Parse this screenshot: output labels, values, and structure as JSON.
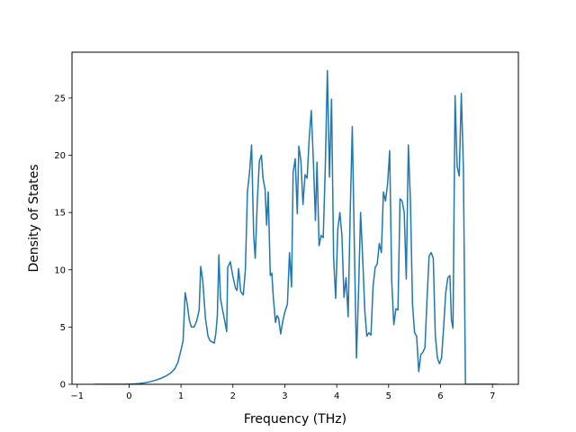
{
  "chart_data": {
    "type": "line",
    "title": "",
    "xlabel": "Frequency (THz)",
    "ylabel": "Density of States",
    "xlim": [
      -1.1,
      7.5
    ],
    "ylim": [
      0,
      29
    ],
    "x_ticks": [
      -1,
      0,
      1,
      2,
      3,
      4,
      5,
      6,
      7
    ],
    "y_ticks": [
      0,
      5,
      10,
      15,
      20,
      25
    ],
    "grid": false,
    "legend": "none",
    "line_color": "#1f77b4",
    "series": [
      {
        "points": [
          [
            -0.67,
            0.0
          ],
          [
            -0.5,
            0.0
          ],
          [
            -0.3,
            0.0
          ],
          [
            -0.1,
            0.0
          ],
          [
            0.0,
            0.01
          ],
          [
            0.1,
            0.03
          ],
          [
            0.2,
            0.07
          ],
          [
            0.3,
            0.13
          ],
          [
            0.4,
            0.22
          ],
          [
            0.5,
            0.34
          ],
          [
            0.6,
            0.5
          ],
          [
            0.7,
            0.7
          ],
          [
            0.8,
            0.98
          ],
          [
            0.88,
            1.35
          ],
          [
            0.94,
            1.9
          ],
          [
            1.0,
            3.0
          ],
          [
            1.04,
            3.8
          ],
          [
            1.08,
            8.0
          ],
          [
            1.12,
            7.0
          ],
          [
            1.16,
            5.6
          ],
          [
            1.2,
            5.0
          ],
          [
            1.25,
            5.0
          ],
          [
            1.3,
            5.5
          ],
          [
            1.35,
            6.5
          ],
          [
            1.38,
            10.3
          ],
          [
            1.42,
            9.0
          ],
          [
            1.47,
            5.8
          ],
          [
            1.52,
            4.2
          ],
          [
            1.56,
            3.8
          ],
          [
            1.6,
            3.7
          ],
          [
            1.64,
            3.6
          ],
          [
            1.67,
            4.4
          ],
          [
            1.7,
            6.0
          ],
          [
            1.73,
            11.3
          ],
          [
            1.76,
            7.5
          ],
          [
            1.8,
            6.5
          ],
          [
            1.84,
            5.6
          ],
          [
            1.88,
            4.6
          ],
          [
            1.9,
            10.2
          ],
          [
            1.95,
            10.7
          ],
          [
            2.0,
            9.4
          ],
          [
            2.05,
            8.4
          ],
          [
            2.08,
            8.2
          ],
          [
            2.11,
            10.1
          ],
          [
            2.15,
            8.1
          ],
          [
            2.2,
            7.8
          ],
          [
            2.24,
            10.0
          ],
          [
            2.28,
            16.8
          ],
          [
            2.32,
            18.5
          ],
          [
            2.36,
            20.9
          ],
          [
            2.4,
            13.0
          ],
          [
            2.43,
            11.0
          ],
          [
            2.47,
            16.0
          ],
          [
            2.51,
            19.5
          ],
          [
            2.55,
            20.0
          ],
          [
            2.58,
            18.0
          ],
          [
            2.62,
            17.0
          ],
          [
            2.65,
            13.9
          ],
          [
            2.68,
            16.8
          ],
          [
            2.72,
            9.5
          ],
          [
            2.75,
            9.7
          ],
          [
            2.78,
            7.5
          ],
          [
            2.82,
            5.4
          ],
          [
            2.85,
            6.0
          ],
          [
            2.88,
            5.8
          ],
          [
            2.92,
            4.4
          ],
          [
            2.96,
            5.5
          ],
          [
            3.0,
            6.3
          ],
          [
            3.05,
            7.0
          ],
          [
            3.09,
            11.5
          ],
          [
            3.13,
            8.5
          ],
          [
            3.16,
            18.5
          ],
          [
            3.2,
            19.7
          ],
          [
            3.24,
            14.9
          ],
          [
            3.27,
            20.8
          ],
          [
            3.31,
            19.5
          ],
          [
            3.35,
            15.7
          ],
          [
            3.39,
            18.3
          ],
          [
            3.43,
            18.0
          ],
          [
            3.47,
            21.5
          ],
          [
            3.51,
            23.9
          ],
          [
            3.55,
            19.5
          ],
          [
            3.59,
            14.3
          ],
          [
            3.62,
            19.4
          ],
          [
            3.66,
            12.1
          ],
          [
            3.7,
            13.0
          ],
          [
            3.74,
            12.8
          ],
          [
            3.78,
            19.0
          ],
          [
            3.82,
            27.4
          ],
          [
            3.86,
            18.1
          ],
          [
            3.9,
            24.9
          ],
          [
            3.94,
            11.0
          ],
          [
            3.98,
            7.5
          ],
          [
            4.02,
            13.5
          ],
          [
            4.06,
            15.0
          ],
          [
            4.1,
            13.0
          ],
          [
            4.14,
            7.6
          ],
          [
            4.18,
            9.3
          ],
          [
            4.22,
            5.9
          ],
          [
            4.26,
            15.0
          ],
          [
            4.3,
            22.5
          ],
          [
            4.34,
            12.0
          ],
          [
            4.38,
            2.3
          ],
          [
            4.42,
            8.0
          ],
          [
            4.46,
            15.0
          ],
          [
            4.5,
            11.0
          ],
          [
            4.54,
            6.5
          ],
          [
            4.58,
            4.2
          ],
          [
            4.62,
            4.5
          ],
          [
            4.66,
            4.3
          ],
          [
            4.7,
            8.5
          ],
          [
            4.74,
            10.2
          ],
          [
            4.78,
            10.5
          ],
          [
            4.82,
            12.3
          ],
          [
            4.86,
            11.5
          ],
          [
            4.9,
            16.8
          ],
          [
            4.94,
            16.0
          ],
          [
            4.98,
            17.5
          ],
          [
            5.02,
            20.4
          ],
          [
            5.06,
            9.0
          ],
          [
            5.1,
            5.2
          ],
          [
            5.14,
            6.6
          ],
          [
            5.18,
            6.5
          ],
          [
            5.22,
            16.2
          ],
          [
            5.26,
            16.0
          ],
          [
            5.3,
            15.0
          ],
          [
            5.34,
            9.2
          ],
          [
            5.38,
            20.9
          ],
          [
            5.42,
            16.0
          ],
          [
            5.46,
            7.0
          ],
          [
            5.5,
            4.5
          ],
          [
            5.54,
            4.2
          ],
          [
            5.58,
            1.1
          ],
          [
            5.62,
            2.6
          ],
          [
            5.66,
            2.8
          ],
          [
            5.7,
            3.2
          ],
          [
            5.74,
            7.5
          ],
          [
            5.78,
            11.2
          ],
          [
            5.82,
            11.5
          ],
          [
            5.86,
            11.0
          ],
          [
            5.9,
            4.2
          ],
          [
            5.94,
            2.3
          ],
          [
            5.98,
            1.8
          ],
          [
            6.02,
            2.3
          ],
          [
            6.06,
            5.0
          ],
          [
            6.1,
            8.0
          ],
          [
            6.14,
            9.3
          ],
          [
            6.18,
            9.5
          ],
          [
            6.21,
            5.6
          ],
          [
            6.24,
            4.9
          ],
          [
            6.28,
            25.2
          ],
          [
            6.32,
            19.0
          ],
          [
            6.36,
            18.2
          ],
          [
            6.4,
            25.4
          ],
          [
            6.44,
            19.0
          ],
          [
            6.48,
            0.0
          ],
          [
            6.6,
            0.0
          ],
          [
            6.8,
            0.0
          ],
          [
            7.0,
            0.0
          ],
          [
            7.1,
            0.0
          ]
        ]
      }
    ]
  }
}
